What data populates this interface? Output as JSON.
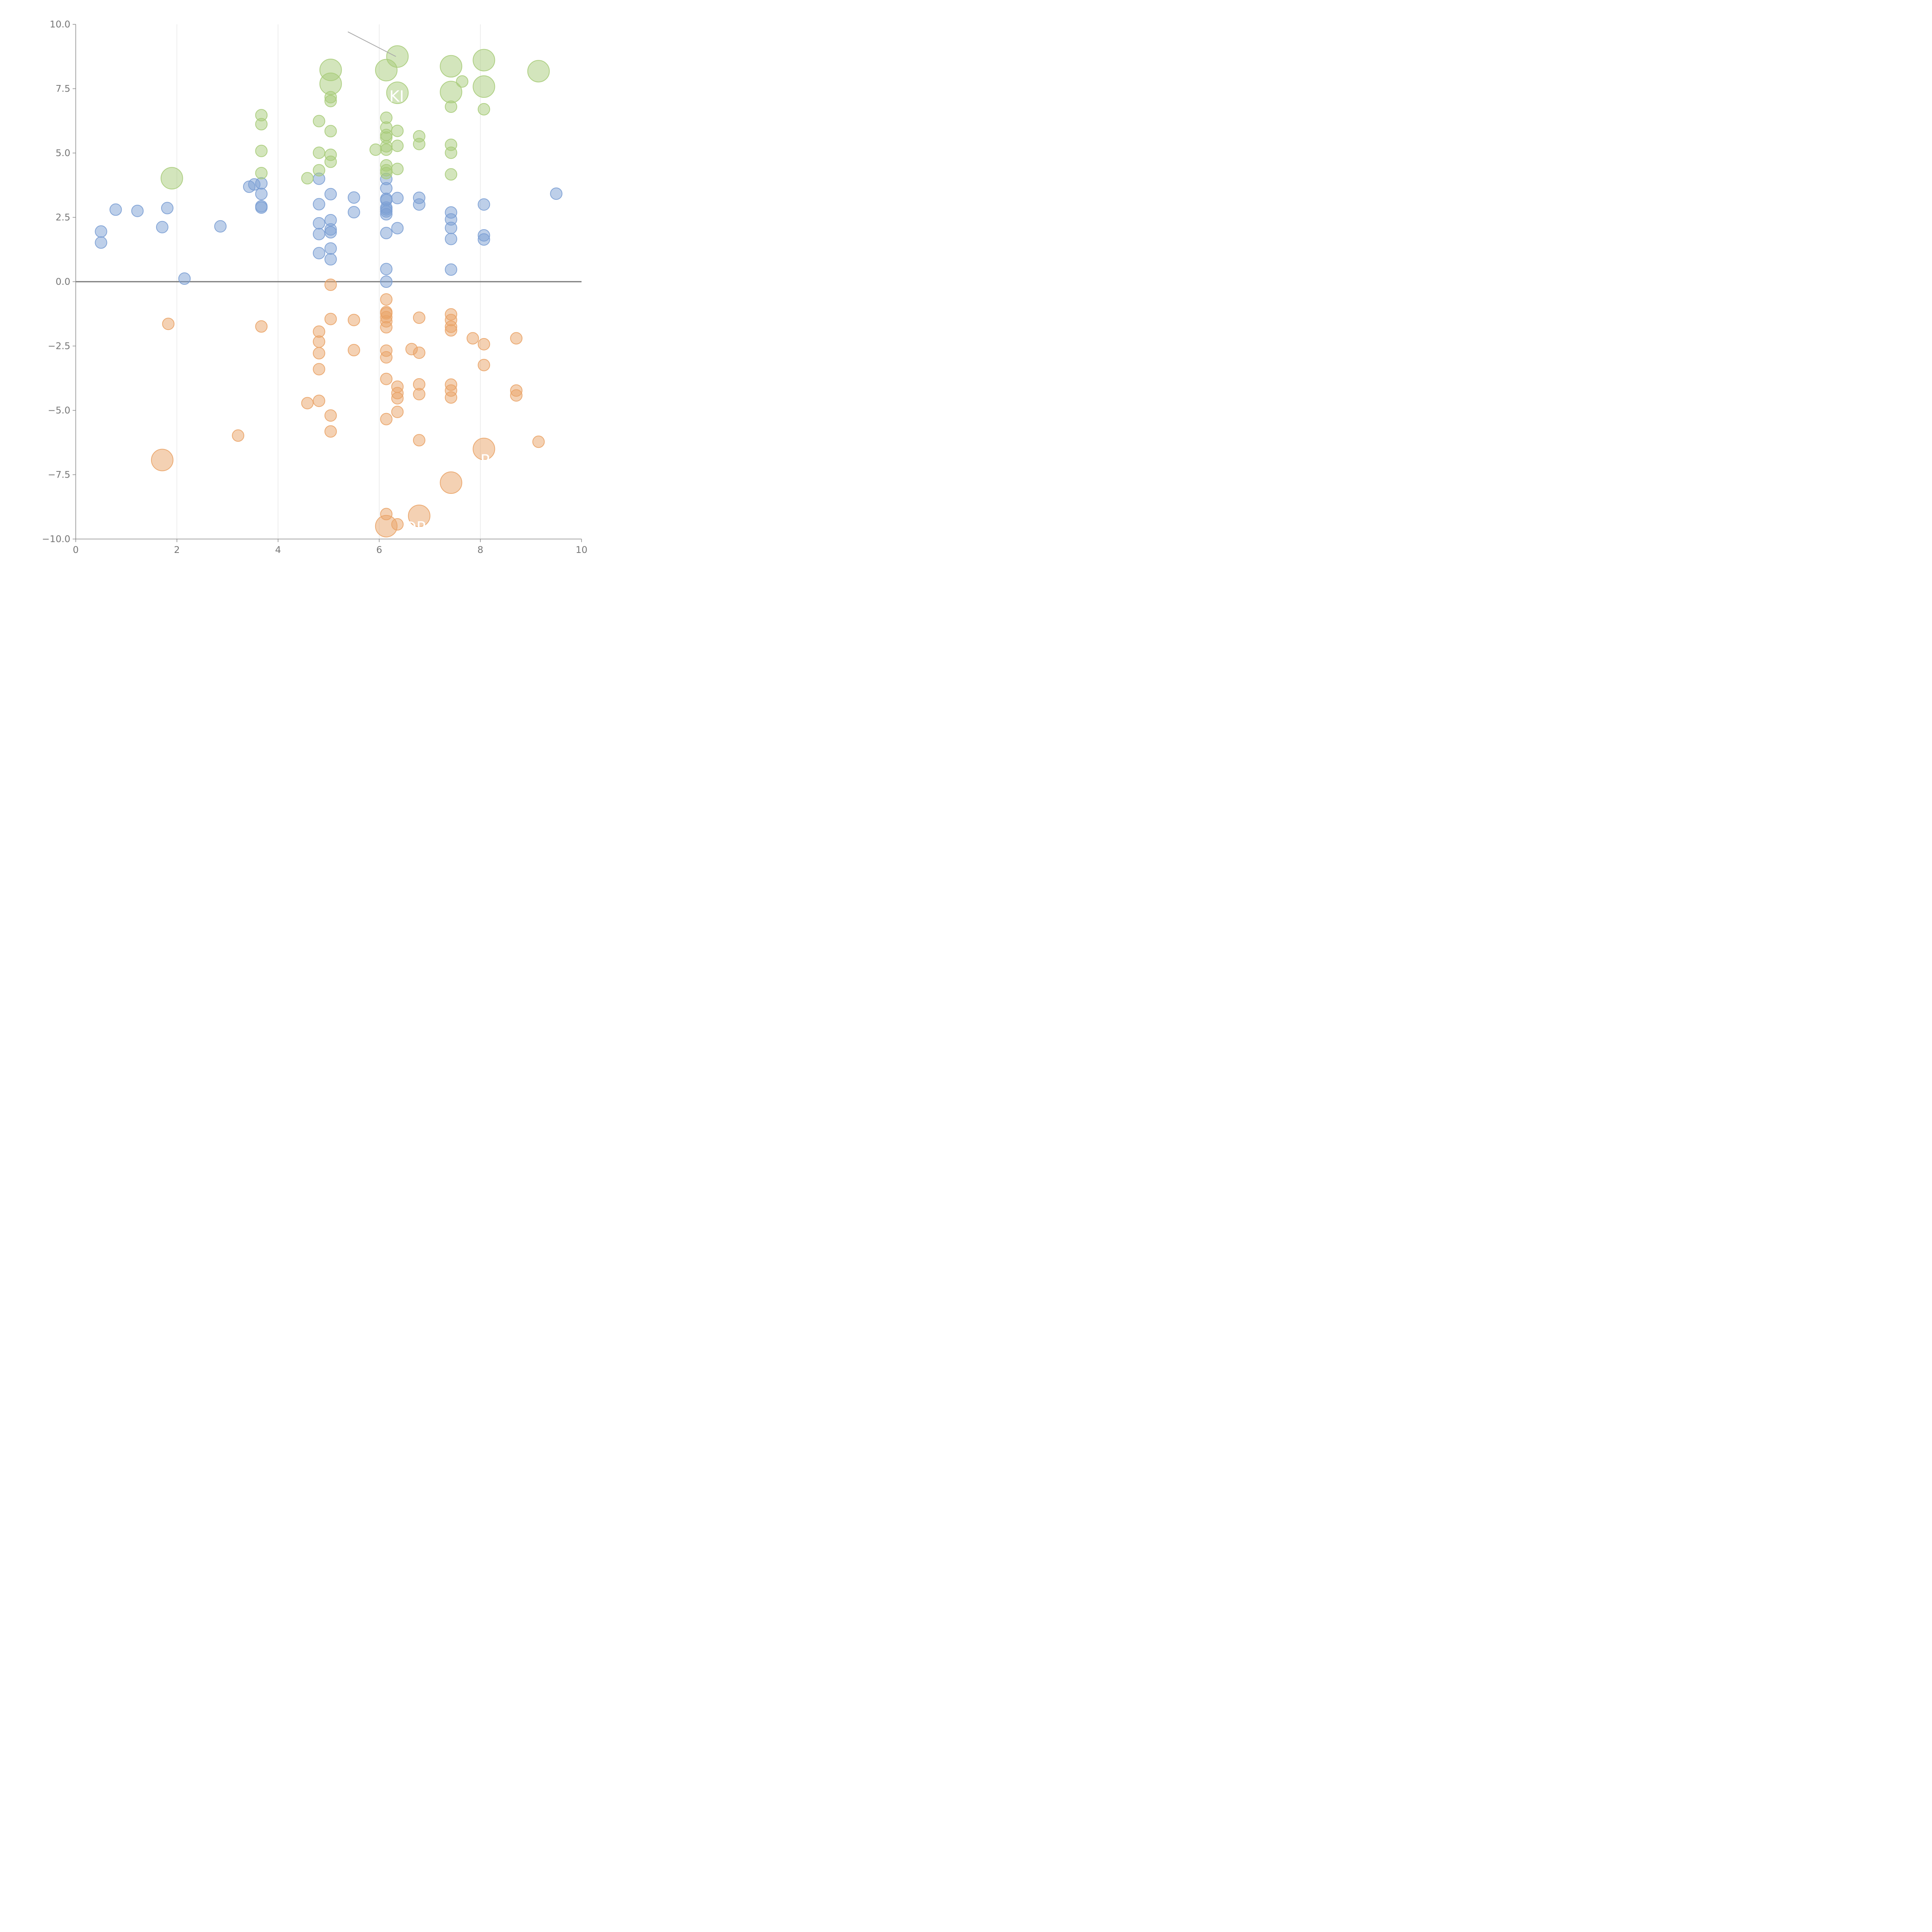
{
  "chart_data": {
    "type": "scatter",
    "title": "",
    "xlabel": "",
    "ylabel": "",
    "xlim": [
      0,
      10
    ],
    "ylim": [
      -10,
      10
    ],
    "x_ticks": [
      0,
      2,
      4,
      6,
      8,
      10
    ],
    "x_tick_labels": [
      "0",
      "2",
      "4",
      "6",
      "8",
      "10"
    ],
    "y_ticks": [
      -10,
      -7.5,
      -5,
      -2.5,
      0,
      2.5,
      5,
      7.5,
      10
    ],
    "y_tick_labels": [
      "−10.0",
      "−7.5",
      "−5.0",
      "−2.5",
      "0.0",
      "2.5",
      "5.0",
      "7.5",
      "10.0"
    ],
    "vertical_gridlines_at": [
      2,
      4,
      6,
      8
    ],
    "zero_line": 0,
    "colors": {
      "blue": "#7b9fd4",
      "green": "#a8cc7a",
      "orange": "#eaa468",
      "axis": "#888888",
      "grid": "#dddddd",
      "zero": "#777777"
    },
    "series": [
      {
        "name": "blue",
        "color": "#7b9fd4",
        "points": [
          [
            0.5,
            1.95,
            "s"
          ],
          [
            0.5,
            1.52,
            "s"
          ],
          [
            0.79,
            2.8,
            "s"
          ],
          [
            1.22,
            2.75,
            "s"
          ],
          [
            1.71,
            2.12,
            "s"
          ],
          [
            1.81,
            2.86,
            "s"
          ],
          [
            2.15,
            0.12,
            "s"
          ],
          [
            2.86,
            2.15,
            "s"
          ],
          [
            3.43,
            3.69,
            "s"
          ],
          [
            3.53,
            3.78,
            "s"
          ],
          [
            3.67,
            3.82,
            "s"
          ],
          [
            3.67,
            3.41,
            "s"
          ],
          [
            3.67,
            2.93,
            "s"
          ],
          [
            3.67,
            2.88,
            "s"
          ],
          [
            4.81,
            4.0,
            "s"
          ],
          [
            4.81,
            3.01,
            "s"
          ],
          [
            4.81,
            2.27,
            "s"
          ],
          [
            4.81,
            1.85,
            "s"
          ],
          [
            4.81,
            1.11,
            "s"
          ],
          [
            5.04,
            3.4,
            "s"
          ],
          [
            5.04,
            2.39,
            "s"
          ],
          [
            5.04,
            2.03,
            "s"
          ],
          [
            5.04,
            1.92,
            "s"
          ],
          [
            5.04,
            1.29,
            "s"
          ],
          [
            5.04,
            0.87,
            "s"
          ],
          [
            5.5,
            3.27,
            "s"
          ],
          [
            5.5,
            2.7,
            "s"
          ],
          [
            6.14,
            3.99,
            "s"
          ],
          [
            6.14,
            3.63,
            "s"
          ],
          [
            6.14,
            3.22,
            "s"
          ],
          [
            6.14,
            3.17,
            "s"
          ],
          [
            6.14,
            2.88,
            "s"
          ],
          [
            6.14,
            2.81,
            "s"
          ],
          [
            6.14,
            2.73,
            "s"
          ],
          [
            6.14,
            2.62,
            "s"
          ],
          [
            6.14,
            1.89,
            "s"
          ],
          [
            6.14,
            0.49,
            "s"
          ],
          [
            6.14,
            0.0,
            "s"
          ],
          [
            6.36,
            3.25,
            "s"
          ],
          [
            6.36,
            2.08,
            "s"
          ],
          [
            6.79,
            3.26,
            "s"
          ],
          [
            6.79,
            3.0,
            "s"
          ],
          [
            7.42,
            2.69,
            "s"
          ],
          [
            7.42,
            2.42,
            "s"
          ],
          [
            7.42,
            2.09,
            "s"
          ],
          [
            7.42,
            1.66,
            "s"
          ],
          [
            7.42,
            0.47,
            "s"
          ],
          [
            8.07,
            3.0,
            "s"
          ],
          [
            8.07,
            1.8,
            "s"
          ],
          [
            8.07,
            1.64,
            "s"
          ],
          [
            9.5,
            3.42,
            "s"
          ]
        ]
      },
      {
        "name": "green",
        "color": "#a8cc7a",
        "points": [
          [
            1.9,
            4.02,
            "l"
          ],
          [
            3.67,
            6.47,
            "s"
          ],
          [
            3.67,
            6.12,
            "s"
          ],
          [
            3.67,
            5.08,
            "s"
          ],
          [
            3.67,
            4.22,
            "s"
          ],
          [
            4.58,
            4.02,
            "s"
          ],
          [
            4.81,
            6.24,
            "s"
          ],
          [
            4.81,
            5.01,
            "s"
          ],
          [
            4.81,
            4.33,
            "s"
          ],
          [
            5.04,
            8.23,
            "l"
          ],
          [
            5.04,
            7.69,
            "l"
          ],
          [
            5.04,
            7.17,
            "s"
          ],
          [
            5.04,
            7.02,
            "s"
          ],
          [
            5.04,
            5.85,
            "s"
          ],
          [
            5.04,
            4.93,
            "s"
          ],
          [
            5.04,
            4.66,
            "s"
          ],
          [
            5.93,
            5.13,
            "s"
          ],
          [
            6.14,
            8.22,
            "l"
          ],
          [
            6.14,
            6.37,
            "s"
          ],
          [
            6.14,
            5.99,
            "s"
          ],
          [
            6.14,
            5.7,
            "s"
          ],
          [
            6.14,
            5.6,
            "s"
          ],
          [
            6.14,
            5.26,
            "s"
          ],
          [
            6.14,
            5.13,
            "s"
          ],
          [
            6.14,
            4.52,
            "s"
          ],
          [
            6.14,
            4.33,
            "s"
          ],
          [
            6.14,
            4.22,
            "s"
          ],
          [
            6.36,
            8.75,
            "l"
          ],
          [
            6.36,
            7.34,
            "l"
          ],
          [
            6.36,
            5.86,
            "s"
          ],
          [
            6.36,
            5.28,
            "s"
          ],
          [
            6.36,
            4.38,
            "s"
          ],
          [
            6.79,
            5.65,
            "s"
          ],
          [
            6.79,
            5.35,
            "s"
          ],
          [
            7.42,
            8.37,
            "l"
          ],
          [
            7.42,
            7.37,
            "l"
          ],
          [
            7.42,
            6.8,
            "s"
          ],
          [
            7.42,
            5.32,
            "s"
          ],
          [
            7.42,
            5.01,
            "s"
          ],
          [
            7.42,
            4.17,
            "s"
          ],
          [
            7.64,
            7.78,
            "s"
          ],
          [
            8.07,
            8.61,
            "l"
          ],
          [
            8.07,
            7.58,
            "l"
          ],
          [
            8.07,
            6.7,
            "s"
          ],
          [
            9.15,
            8.18,
            "l"
          ]
        ]
      },
      {
        "name": "orange",
        "color": "#eaa468",
        "points": [
          [
            1.71,
            -6.93,
            "l"
          ],
          [
            1.83,
            -1.64,
            "s"
          ],
          [
            3.21,
            -5.98,
            "s"
          ],
          [
            3.67,
            -1.74,
            "s"
          ],
          [
            4.58,
            -4.72,
            "s"
          ],
          [
            4.81,
            -1.94,
            "s"
          ],
          [
            4.81,
            -2.33,
            "s"
          ],
          [
            4.81,
            -2.78,
            "s"
          ],
          [
            4.81,
            -3.4,
            "s"
          ],
          [
            4.81,
            -4.63,
            "s"
          ],
          [
            5.04,
            -0.12,
            "s"
          ],
          [
            5.04,
            -1.45,
            "s"
          ],
          [
            5.04,
            -5.2,
            "s"
          ],
          [
            5.04,
            -5.82,
            "s"
          ],
          [
            5.5,
            -1.49,
            "s"
          ],
          [
            5.5,
            -2.66,
            "s"
          ],
          [
            6.14,
            -0.69,
            "s"
          ],
          [
            6.14,
            -1.18,
            "s"
          ],
          [
            6.14,
            -1.23,
            "s"
          ],
          [
            6.14,
            -1.38,
            "s"
          ],
          [
            6.14,
            -1.54,
            "s"
          ],
          [
            6.14,
            -1.77,
            "s"
          ],
          [
            6.14,
            -2.68,
            "s"
          ],
          [
            6.14,
            -2.94,
            "s"
          ],
          [
            6.14,
            -3.78,
            "s"
          ],
          [
            6.14,
            -5.34,
            "s"
          ],
          [
            6.14,
            -9.03,
            "s"
          ],
          [
            6.14,
            -9.5,
            "l"
          ],
          [
            6.36,
            -4.08,
            "s"
          ],
          [
            6.36,
            -4.33,
            "s"
          ],
          [
            6.36,
            -4.53,
            "s"
          ],
          [
            6.36,
            -5.06,
            "s"
          ],
          [
            6.36,
            -9.43,
            "s"
          ],
          [
            6.64,
            -2.62,
            "s"
          ],
          [
            6.79,
            -1.4,
            "s"
          ],
          [
            6.79,
            -2.76,
            "s"
          ],
          [
            6.79,
            -3.99,
            "s"
          ],
          [
            6.79,
            -4.37,
            "s"
          ],
          [
            6.79,
            -6.16,
            "s"
          ],
          [
            6.79,
            -9.1,
            "l"
          ],
          [
            7.42,
            -1.27,
            "s"
          ],
          [
            7.42,
            -1.49,
            "s"
          ],
          [
            7.42,
            -1.75,
            "s"
          ],
          [
            7.42,
            -1.89,
            "s"
          ],
          [
            7.42,
            -4.0,
            "s"
          ],
          [
            7.42,
            -4.23,
            "s"
          ],
          [
            7.42,
            -4.5,
            "s"
          ],
          [
            7.42,
            -7.81,
            "l"
          ],
          [
            7.85,
            -2.2,
            "s"
          ],
          [
            8.07,
            -2.43,
            "s"
          ],
          [
            8.07,
            -3.24,
            "s"
          ],
          [
            8.07,
            -6.5,
            "l"
          ],
          [
            8.71,
            -2.2,
            "s"
          ],
          [
            8.71,
            -4.23,
            "s"
          ],
          [
            8.71,
            -4.42,
            "s"
          ],
          [
            9.15,
            -6.22,
            "s"
          ]
        ]
      }
    ],
    "annotations": [
      "KI",
      "P",
      "D​P"
    ]
  }
}
